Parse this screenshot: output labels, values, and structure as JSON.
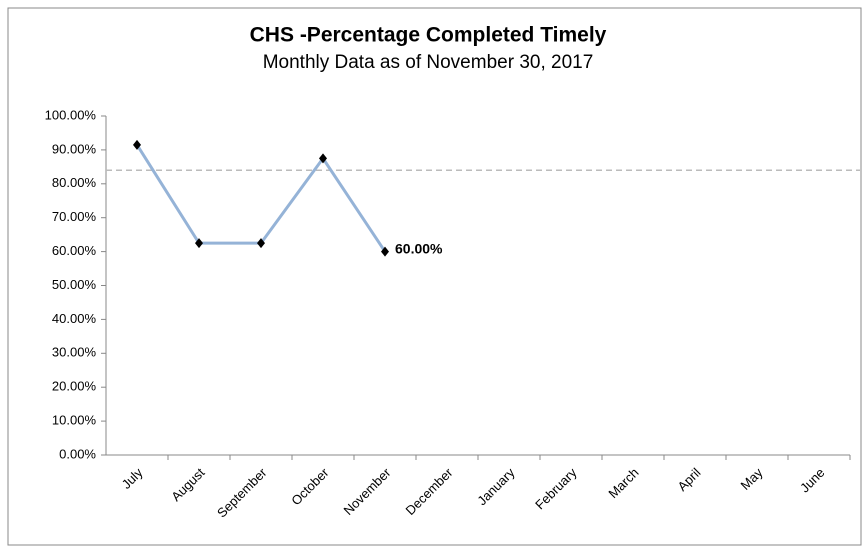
{
  "chart_data": {
    "type": "line",
    "title": "CHS -Percentage Completed Timely",
    "subtitle": "Monthly Data as of November 30, 2017",
    "categories": [
      "July",
      "August",
      "September",
      "October",
      "November",
      "December",
      "January",
      "February",
      "March",
      "April",
      "May",
      "June"
    ],
    "series": [
      {
        "color": "#95b3d7",
        "marker_color": "#000000",
        "values": [
          91.5,
          62.5,
          62.5,
          87.5,
          60,
          null,
          null,
          null,
          null,
          null,
          null,
          null
        ],
        "value_labels": [
          null,
          null,
          null,
          null,
          "60.00%",
          null,
          null,
          null,
          null,
          null,
          null,
          null
        ]
      }
    ],
    "reference_line": {
      "value": 84,
      "color": "#bbbbbb"
    },
    "ylim": [
      0,
      100
    ],
    "yticks": [
      {
        "value": 0,
        "label": "0.00%"
      },
      {
        "value": 10,
        "label": "10.00%"
      },
      {
        "value": 20,
        "label": "20.00%"
      },
      {
        "value": 30,
        "label": "30.00%"
      },
      {
        "value": 40,
        "label": "40.00%"
      },
      {
        "value": 50,
        "label": "50.00%"
      },
      {
        "value": 60,
        "label": "60.00%"
      },
      {
        "value": 70,
        "label": "70.00%"
      },
      {
        "value": 80,
        "label": "80.00%"
      },
      {
        "value": 90,
        "label": "90.00%"
      },
      {
        "value": 100,
        "label": "100.00%"
      }
    ],
    "grid": false
  }
}
